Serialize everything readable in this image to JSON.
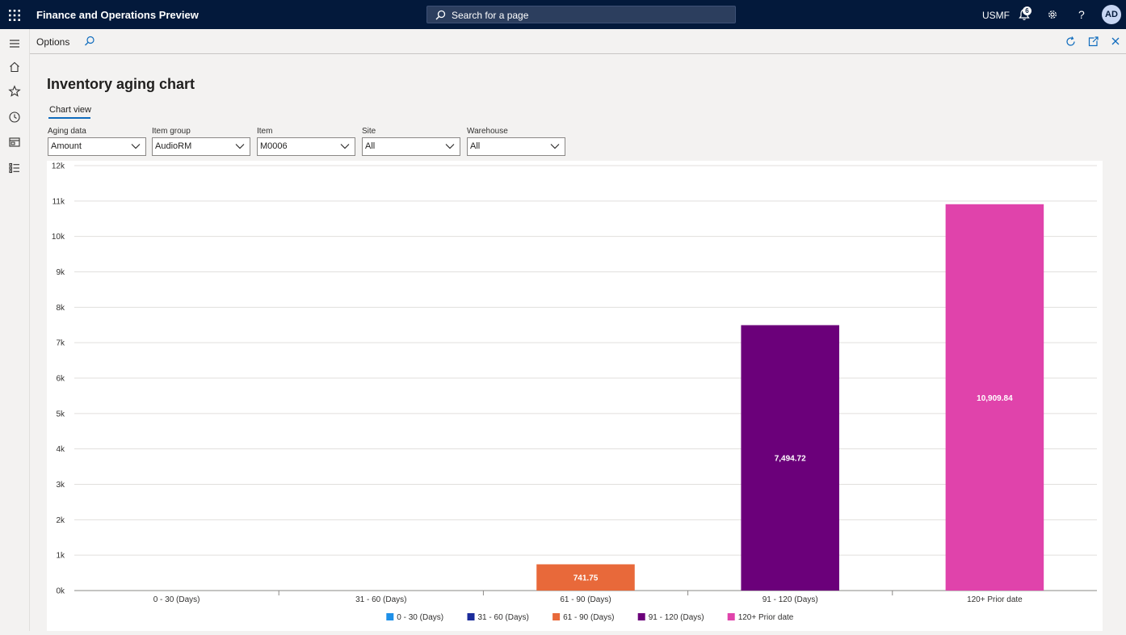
{
  "app": {
    "title": "Finance and Operations Preview",
    "search_placeholder": "Search for a page",
    "company": "USMF",
    "notification_count": "6",
    "help_label": "?",
    "user_initials": "AD"
  },
  "actionbar": {
    "options_label": "Options"
  },
  "page": {
    "title": "Inventory aging chart",
    "tab_label": "Chart view"
  },
  "filters": [
    {
      "label": "Aging data",
      "value": "Amount"
    },
    {
      "label": "Item group",
      "value": "AudioRM"
    },
    {
      "label": "Item",
      "value": "M0006"
    },
    {
      "label": "Site",
      "value": "All"
    },
    {
      "label": "Warehouse",
      "value": "All"
    }
  ],
  "chart_data": {
    "type": "bar",
    "categories": [
      "0 - 30 (Days)",
      "31 - 60 (Days)",
      "61 - 90 (Days)",
      "91 - 120 (Days)",
      "120+ Prior date"
    ],
    "values": [
      0,
      0,
      741.75,
      7494.72,
      10909.84
    ],
    "data_labels": [
      "",
      "",
      "741.75",
      "7,494.72",
      "10,909.84"
    ],
    "colors": [
      "#1e90e8",
      "#1c2c9b",
      "#e8693a",
      "#6b007a",
      "#e043ab"
    ],
    "ylim": [
      0,
      12000
    ],
    "y_ticks": [
      0,
      1000,
      2000,
      3000,
      4000,
      5000,
      6000,
      7000,
      8000,
      9000,
      10000,
      11000,
      12000
    ],
    "y_tick_labels": [
      "0k",
      "1k",
      "2k",
      "3k",
      "4k",
      "5k",
      "6k",
      "7k",
      "8k",
      "9k",
      "10k",
      "11k",
      "12k"
    ],
    "legend": [
      "0 - 30 (Days)",
      "31 - 60 (Days)",
      "61 - 90 (Days)",
      "91 - 120 (Days)",
      "120+ Prior date"
    ],
    "legend_position": "bottom-center",
    "grid": true
  }
}
